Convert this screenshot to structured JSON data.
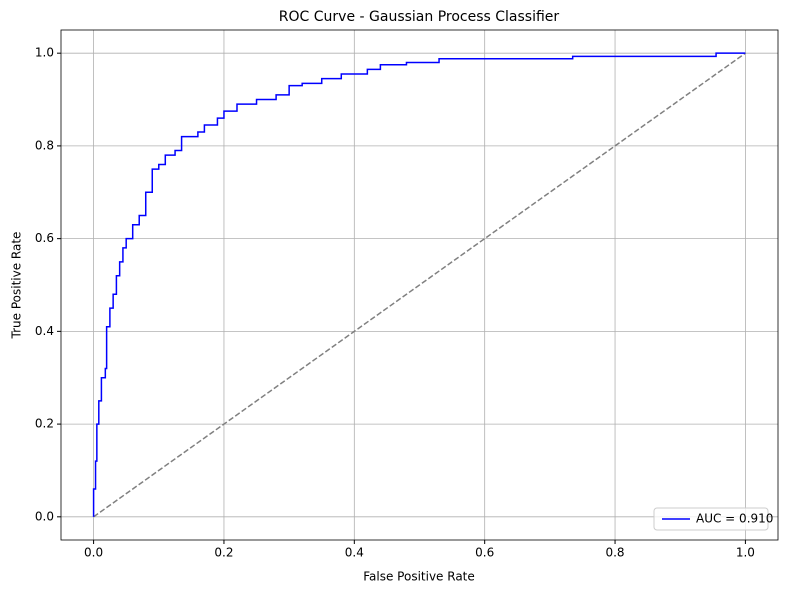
{
  "chart_data": {
    "type": "line",
    "title": "ROC Curve - Gaussian Process Classifier",
    "xlabel": "False Positive Rate",
    "ylabel": "True Positive Rate",
    "xlim": [
      -0.05,
      1.05
    ],
    "ylim": [
      -0.05,
      1.05
    ],
    "xticks": [
      {
        "value": 0,
        "label": "0.0"
      },
      0.2,
      0.4,
      0.6,
      0.8,
      {
        "value": 1,
        "label": "1.0"
      }
    ],
    "yticks": [
      {
        "value": 0,
        "label": "0.0"
      },
      0.2,
      0.4,
      0.6,
      0.8,
      {
        "value": 1,
        "label": "1.0"
      }
    ],
    "grid": true,
    "legend": "lower right",
    "series": [
      {
        "name": "AUC = 0.910",
        "color": "#0000ff",
        "x": [
          0,
          0,
          0.003,
          0.003,
          0.005,
          0.005,
          0.008,
          0.008,
          0.012,
          0.012,
          0.018,
          0.018,
          0.02,
          0.02,
          0.025,
          0.025,
          0.03,
          0.03,
          0.035,
          0.035,
          0.04,
          0.04,
          0.045,
          0.045,
          0.05,
          0.05,
          0.06,
          0.06,
          0.07,
          0.07,
          0.08,
          0.08,
          0.09,
          0.09,
          0.1,
          0.1,
          0.11,
          0.11,
          0.125,
          0.125,
          0.135,
          0.135,
          0.16,
          0.16,
          0.17,
          0.17,
          0.19,
          0.19,
          0.2,
          0.2,
          0.22,
          0.22,
          0.25,
          0.25,
          0.28,
          0.28,
          0.3,
          0.3,
          0.32,
          0.32,
          0.35,
          0.35,
          0.38,
          0.38,
          0.42,
          0.42,
          0.44,
          0.44,
          0.48,
          0.48,
          0.53,
          0.53,
          0.735,
          0.735,
          0.955,
          0.955,
          1
        ],
        "values": [
          0,
          0.06,
          0.06,
          0.12,
          0.12,
          0.2,
          0.2,
          0.25,
          0.25,
          0.3,
          0.3,
          0.32,
          0.32,
          0.41,
          0.41,
          0.45,
          0.45,
          0.48,
          0.48,
          0.52,
          0.52,
          0.55,
          0.55,
          0.58,
          0.58,
          0.6,
          0.6,
          0.63,
          0.63,
          0.65,
          0.65,
          0.7,
          0.7,
          0.75,
          0.75,
          0.76,
          0.76,
          0.78,
          0.78,
          0.79,
          0.79,
          0.82,
          0.82,
          0.83,
          0.83,
          0.845,
          0.845,
          0.86,
          0.86,
          0.875,
          0.875,
          0.89,
          0.89,
          0.9,
          0.9,
          0.91,
          0.91,
          0.93,
          0.93,
          0.935,
          0.935,
          0.945,
          0.945,
          0.955,
          0.955,
          0.965,
          0.965,
          0.975,
          0.975,
          0.98,
          0.98,
          0.988,
          0.988,
          0.993,
          0.993,
          1,
          1
        ]
      },
      {
        "color": "#808080",
        "dashed": true,
        "x": [
          0,
          1
        ],
        "values": [
          0,
          1
        ]
      }
    ]
  }
}
